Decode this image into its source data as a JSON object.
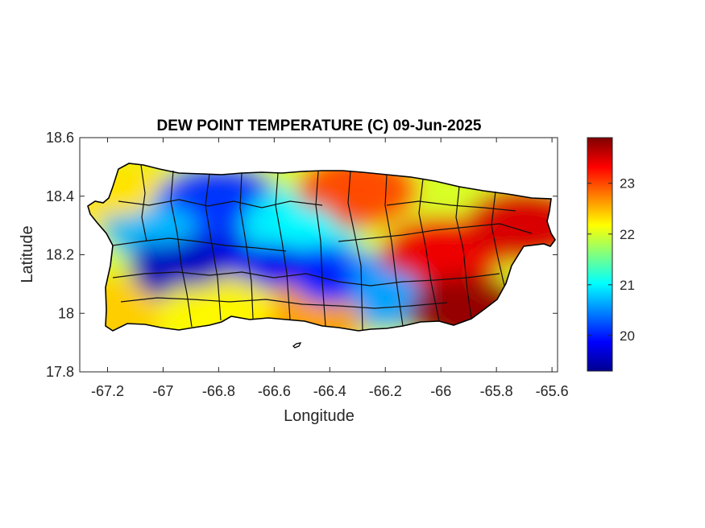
{
  "chart_data": {
    "type": "heatmap",
    "title": "DEW POINT TEMPERATURE (C) 09-Jun-2025",
    "xlabel": "Longitude",
    "ylabel": "Latitude",
    "xlim": [
      -67.3,
      -65.58
    ],
    "ylim": [
      17.8,
      18.6
    ],
    "xticks": [
      -67.2,
      -67,
      -66.8,
      -66.6,
      -66.4,
      -66.2,
      -66,
      -65.8,
      -65.6
    ],
    "xtick_labels": [
      "-67.2",
      "-67",
      "-66.8",
      "-66.6",
      "-66.4",
      "-66.2",
      "-66",
      "-65.8",
      "-65.6"
    ],
    "yticks": [
      17.8,
      18,
      18.2,
      18.4,
      18.6
    ],
    "ytick_labels": [
      "17.8",
      "18",
      "18.2",
      "18.4",
      "18.6"
    ],
    "colorbar": {
      "colormap": "jet",
      "range": [
        19.3,
        23.9
      ],
      "ticks": [
        20,
        21,
        22,
        23
      ],
      "tick_labels": [
        "20",
        "21",
        "22",
        "23"
      ]
    },
    "grid": false,
    "region": "Puerto Rico",
    "field_summary": [
      {
        "lon": -67.2,
        "lat": 18.0,
        "value": 22.4
      },
      {
        "lon": -67.15,
        "lat": 18.4,
        "value": 22.3
      },
      {
        "lon": -67.0,
        "lat": 18.3,
        "value": 20.7
      },
      {
        "lon": -66.9,
        "lat": 18.16,
        "value": 19.6
      },
      {
        "lon": -66.8,
        "lat": 18.38,
        "value": 20.1
      },
      {
        "lon": -66.6,
        "lat": 18.17,
        "value": 19.8
      },
      {
        "lon": -66.5,
        "lat": 18.3,
        "value": 21.0
      },
      {
        "lon": -66.4,
        "lat": 18.1,
        "value": 20.0
      },
      {
        "lon": -66.2,
        "lat": 18.08,
        "value": 20.6
      },
      {
        "lon": -66.3,
        "lat": 18.42,
        "value": 23.0
      },
      {
        "lon": -66.0,
        "lat": 18.2,
        "value": 23.4
      },
      {
        "lon": -65.9,
        "lat": 18.0,
        "value": 23.8
      },
      {
        "lon": -65.7,
        "lat": 18.3,
        "value": 23.5
      },
      {
        "lon": -66.5,
        "lat": 17.97,
        "value": 22.6
      },
      {
        "lon": -66.8,
        "lat": 18.0,
        "value": 22.2
      }
    ]
  }
}
